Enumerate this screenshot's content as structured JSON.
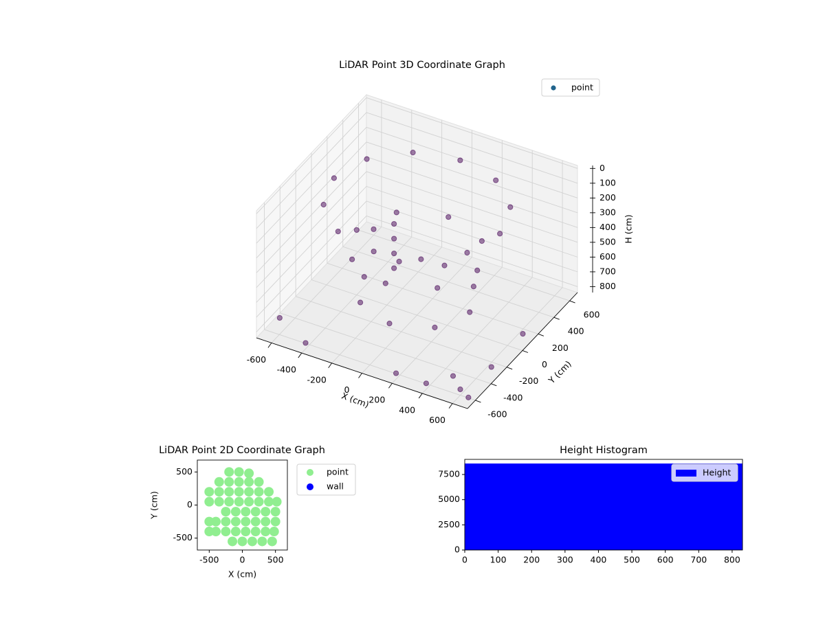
{
  "chart_data": [
    {
      "type": "scatter3d",
      "title": "LiDAR Point 3D Coordinate Graph",
      "xlabel": "X (cm)",
      "ylabel": "Y (cm)",
      "zlabel": "H (cm)",
      "xlim": [
        -700,
        700
      ],
      "ylim": [
        -700,
        700
      ],
      "zlim": [
        840,
        -20
      ],
      "xticks": [
        -600,
        -400,
        -200,
        0,
        200,
        400,
        600
      ],
      "yticks": [
        -600,
        -400,
        -200,
        0,
        200,
        400,
        600
      ],
      "zticks": [
        0,
        100,
        200,
        300,
        400,
        500,
        600,
        700,
        800
      ],
      "grid": true,
      "legend": "upper right",
      "series": [
        {
          "name": "point",
          "color": "#440154",
          "legend_color": "#21648c",
          "x": [
            550,
            476,
            275,
            0,
            -275,
            -476,
            -550,
            -476,
            -275,
            0,
            275,
            476,
            400,
            283,
            0,
            -283,
            -400,
            -283,
            0,
            283,
            350,
            247,
            0,
            -247,
            -350,
            -247,
            0,
            247,
            600,
            650,
            400,
            -650,
            -600,
            500,
            650,
            200,
            -400,
            680,
            -100,
            -100,
            -100,
            -100
          ],
          "y": [
            0,
            275,
            476,
            550,
            476,
            275,
            0,
            -275,
            -476,
            -550,
            -476,
            -275,
            0,
            283,
            400,
            283,
            0,
            -283,
            -400,
            -283,
            0,
            247,
            350,
            247,
            0,
            -247,
            -350,
            -247,
            -600,
            -300,
            -650,
            -500,
            600,
            -500,
            100,
            -650,
            -650,
            -650,
            -100,
            -100,
            -100,
            -100
          ],
          "values": [
            100,
            100,
            100,
            100,
            100,
            100,
            100,
            100,
            100,
            100,
            100,
            100,
            400,
            400,
            400,
            400,
            400,
            400,
            400,
            400,
            700,
            700,
            700,
            700,
            700,
            700,
            700,
            700,
            800,
            800,
            800,
            800,
            800,
            800,
            800,
            800,
            800,
            800,
            200,
            300,
            400,
            500
          ]
        }
      ]
    },
    {
      "type": "scatter",
      "title": "LiDAR Point 2D Coordinate Graph",
      "xlabel": "X (cm)",
      "ylabel": "Y (cm)",
      "xlim": [
        -680,
        680
      ],
      "ylim": [
        -680,
        680
      ],
      "xticks": [
        -500,
        0,
        500
      ],
      "yticks": [
        -500,
        0,
        500
      ],
      "legend": "outside upper right",
      "series": [
        {
          "name": "point",
          "color": "#90ee90",
          "x": [
            -200,
            -50,
            100,
            -350,
            -200,
            -50,
            100,
            250,
            -500,
            -350,
            -200,
            -50,
            100,
            250,
            400,
            -500,
            -350,
            -200,
            -50,
            100,
            250,
            400,
            520,
            -250,
            -100,
            50,
            200,
            350,
            500,
            -500,
            -400,
            -250,
            -100,
            50,
            200,
            350,
            500,
            -500,
            -400,
            -250,
            -100,
            50,
            200,
            350,
            480,
            -150,
            0,
            150,
            300,
            450
          ],
          "values": [
            500,
            500,
            480,
            350,
            350,
            350,
            350,
            350,
            200,
            200,
            200,
            200,
            200,
            200,
            200,
            50,
            50,
            50,
            50,
            50,
            50,
            50,
            50,
            -100,
            -100,
            -100,
            -100,
            -100,
            -100,
            -250,
            -250,
            -250,
            -250,
            -250,
            -250,
            -250,
            -250,
            -400,
            -400,
            -400,
            -400,
            -400,
            -400,
            -400,
            -400,
            -550,
            -550,
            -550,
            -550,
            -550
          ]
        },
        {
          "name": "wall",
          "color": "#0000ff",
          "x": [],
          "values": []
        }
      ]
    },
    {
      "type": "histogram",
      "title": "Height Histogram",
      "name": "Height",
      "color": "#0000ff",
      "bins": [
        0,
        83,
        166,
        249,
        332,
        415,
        498,
        581,
        664,
        747,
        830
      ],
      "values": [
        8590,
        8590,
        8590,
        8590,
        8590,
        8590,
        8590,
        8590,
        8590,
        8590
      ],
      "xlim": [
        0,
        831
      ],
      "ylim": [
        0,
        9000
      ],
      "xticks": [
        0,
        100,
        200,
        300,
        400,
        500,
        600,
        700,
        800
      ],
      "yticks": [
        0,
        2500,
        5000,
        7500
      ],
      "legend": "upper right"
    }
  ]
}
